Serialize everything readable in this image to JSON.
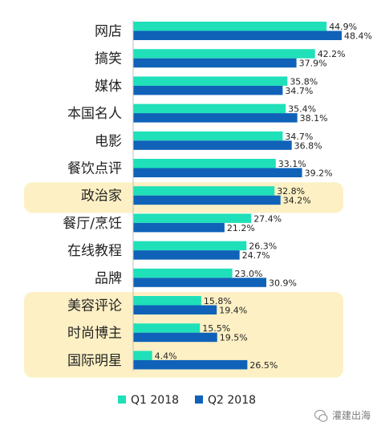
{
  "chart_data": {
    "type": "bar",
    "orientation": "horizontal",
    "categories": [
      "网店",
      "搞笑",
      "媒体",
      "本国名人",
      "电影",
      "餐饮点评",
      "政治家",
      "餐厅/烹饪",
      "在线教程",
      "品牌",
      "美容评论",
      "时尚博主",
      "国际明星"
    ],
    "series": [
      {
        "name": "Q1 2018",
        "color": "#1fe0b8",
        "values": [
          44.9,
          42.2,
          35.8,
          35.4,
          34.7,
          33.1,
          32.8,
          27.4,
          26.3,
          23.0,
          15.8,
          15.5,
          4.4
        ],
        "labels": [
          "44.9%",
          "42.2%",
          "35.8%",
          "35.4%",
          "34.7%",
          "33.1%",
          "32.8%",
          "27.4%",
          "26.3%",
          "23.0%",
          "15.8%",
          "15.5%",
          "4.4%"
        ]
      },
      {
        "name": "Q2 2018",
        "color": "#0f62b8",
        "values": [
          48.4,
          37.9,
          34.7,
          38.1,
          36.8,
          39.2,
          34.2,
          21.2,
          24.7,
          30.9,
          19.4,
          19.5,
          26.5
        ],
        "labels": [
          "48.4%",
          "37.9%",
          "34.7%",
          "38.1%",
          "36.8%",
          "39.2%",
          "34.2%",
          "21.2%",
          "24.7%",
          "30.9%",
          "19.4%",
          "19.5%",
          "26.5%"
        ]
      }
    ],
    "xlim": [
      0,
      50
    ],
    "grid": false,
    "legend_position": "bottom",
    "highlight_groups": [
      {
        "categories": [
          "政治家"
        ],
        "color": "#fdf0c4"
      },
      {
        "categories": [
          "美容评论",
          "时尚博主",
          "国际明星"
        ],
        "color": "#fdf0c4"
      }
    ]
  },
  "watermark": {
    "text": "灌建出海"
  }
}
